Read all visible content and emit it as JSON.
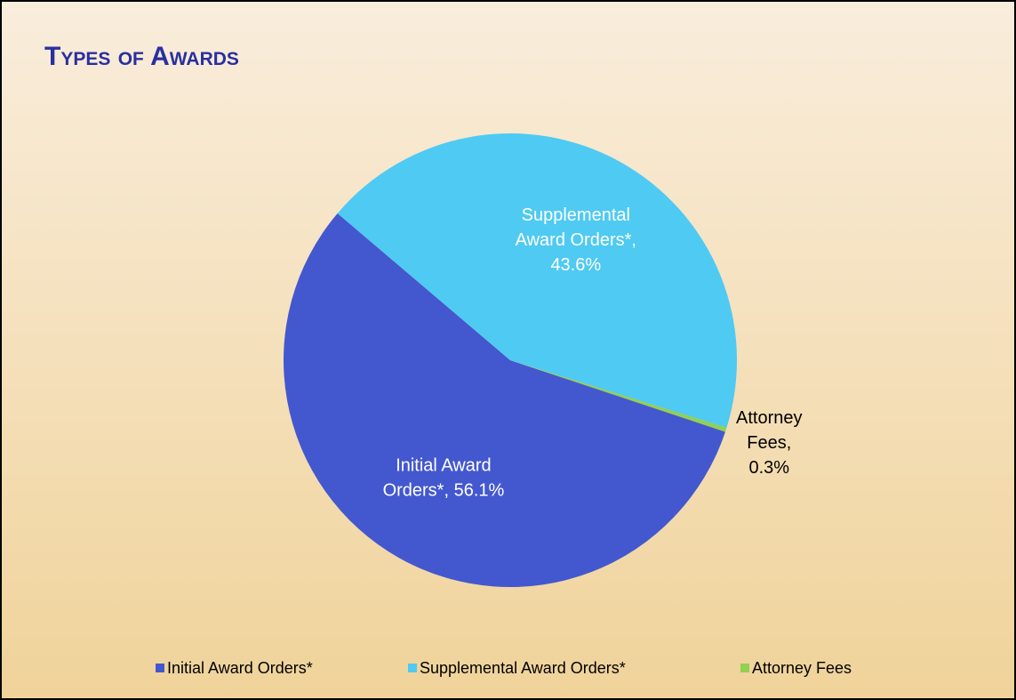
{
  "chart_data": {
    "type": "pie",
    "title": "Types of Awards",
    "categories": [
      "Initial Award Orders*",
      "Supplemental Award Orders*",
      "Attorney Fees"
    ],
    "values": [
      56.1,
      43.6,
      0.3
    ],
    "value_labels": [
      "Initial Award Orders*, 56.1%",
      "Supplemental Award Orders*, 43.6%",
      "Attorney Fees, 0.3%"
    ],
    "colors": [
      "#4358cf",
      "#4fcaf2",
      "#92d050"
    ],
    "legend": "bottom"
  }
}
